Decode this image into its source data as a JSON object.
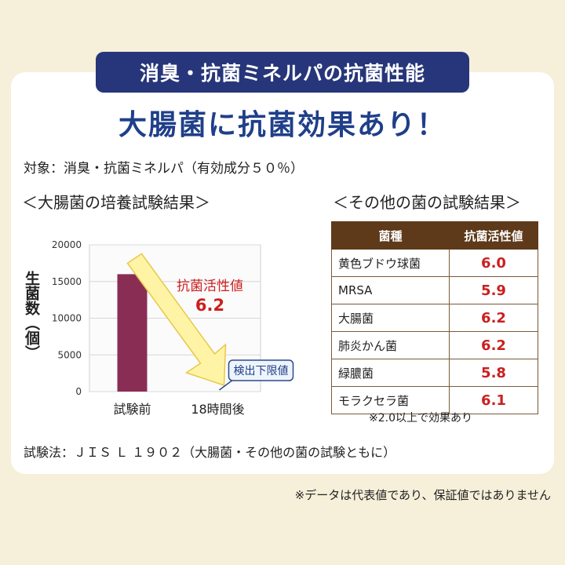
{
  "header": {
    "badge": "消臭・抗菌ミネルパの抗菌性能",
    "headline": "大腸菌に抗菌効果あり！"
  },
  "subject": "対象：消臭・抗菌ミネルパ（有効成分５０％）",
  "chart_section_title": "＜大腸菌の培養試験結果＞",
  "table_section_title": "＜その他の菌の試験結果＞",
  "chart_data": {
    "type": "bar",
    "categories": [
      "試験前",
      "18時間後"
    ],
    "values": [
      16000,
      0
    ],
    "ylabel": "生菌数（個）",
    "ylim": [
      0,
      20000
    ],
    "yticks": [
      "0",
      "5000",
      "10000",
      "15000",
      "20000"
    ],
    "annotation_label": "抗菌活性値",
    "annotation_value": "6.2",
    "callout": "検出下限値",
    "bar_color": "#8a2d55",
    "arrow_color": "#fff4a6"
  },
  "table": {
    "headers": [
      "菌種",
      "抗菌活性値"
    ],
    "rows": [
      {
        "name": "黄色ブドウ球菌",
        "value": "6.0"
      },
      {
        "name": "MRSA",
        "value": "5.9"
      },
      {
        "name": "大腸菌",
        "value": "6.2"
      },
      {
        "name": "肺炎かん菌",
        "value": "6.2"
      },
      {
        "name": "緑膿菌",
        "value": "5.8"
      },
      {
        "name": "モラクセラ菌",
        "value": "6.1"
      }
    ],
    "note": "※2.0以上で効果あり"
  },
  "method": "試験法：ＪＩＳ Ｌ １９０２（大腸菌・その他の菌の試験ともに）",
  "disclaimer": "※データは代表値であり、保証値ではありません"
}
